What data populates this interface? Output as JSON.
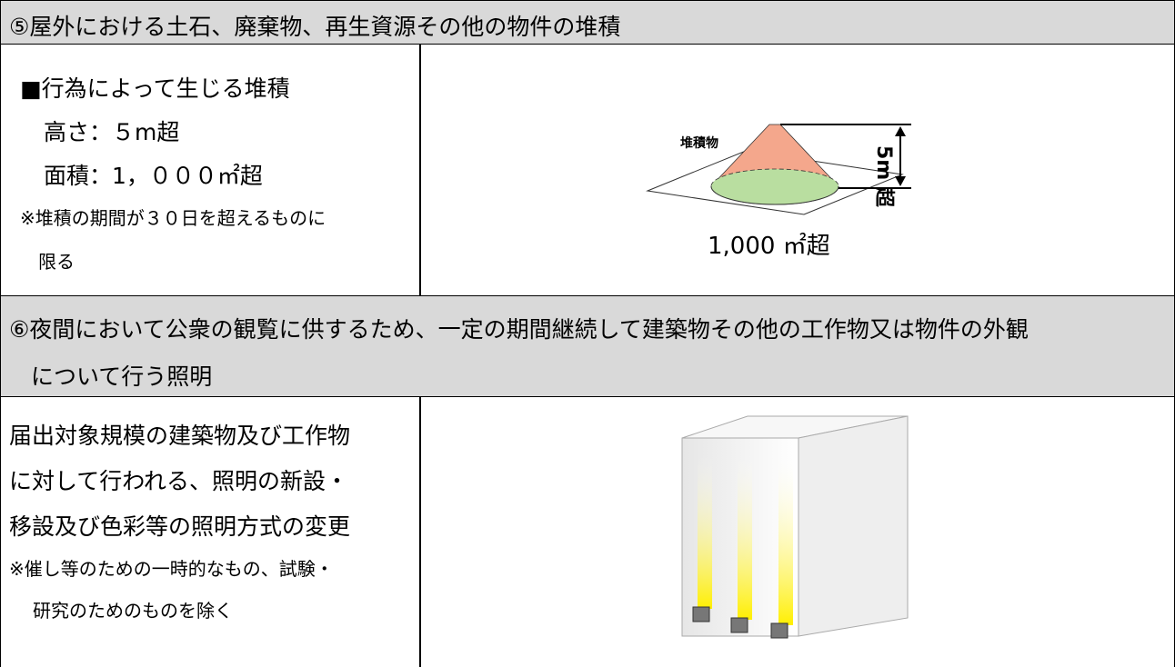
{
  "sections": [
    {
      "heading": [
        "⑤屋外における土石、廃棄物、再生資源その他の物件の堆積"
      ],
      "description": [
        "■行為によって生じる堆積",
        "高さ：５m超",
        "面積：1，０００㎡超"
      ],
      "notes": [
        "※堆積の期間が３０日を超えるものに",
        "限る"
      ],
      "figure": {
        "labels": [
          "堆積物",
          "5m 超",
          "1,000 ㎡超"
        ]
      }
    },
    {
      "heading": [
        "⑥夜間において公衆の観覧に供するため、一定の期間継続して建築物その他の工作物又は物件の外観",
        "について行う照明"
      ],
      "description": [
        "届出対象規模の建築物及び工作物",
        "に対して行われる、照明の新設・",
        "移設及び色彩等の照明方式の変更"
      ],
      "notes": [
        "※催し等のための一時的なもの、試験・",
        "研究のためのものを除く"
      ]
    }
  ]
}
